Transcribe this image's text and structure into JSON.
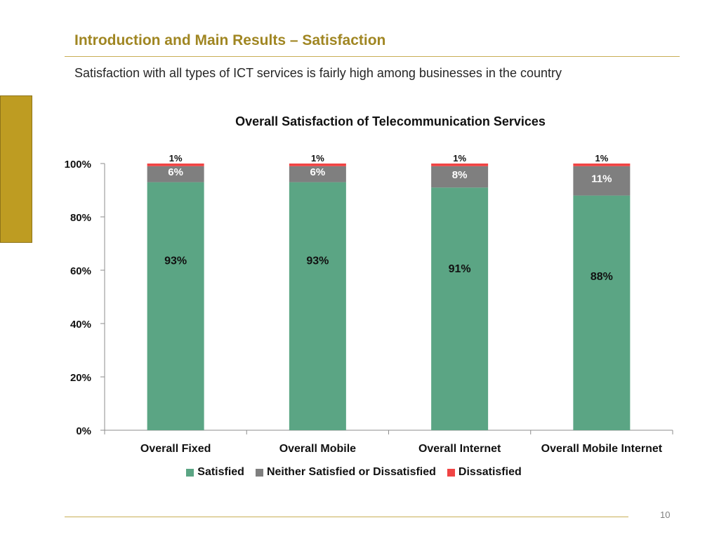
{
  "slide": {
    "title": "Introduction and Main Results – Satisfaction",
    "subtitle": "Satisfaction with all types of ICT services is fairly high among businesses in the country",
    "page_number": "10"
  },
  "colors": {
    "accent": "#BE9C22",
    "title": "#A08622",
    "satisfied": "#5BA584",
    "neutral": "#7F7F7F",
    "dissatisfied": "#F04444"
  },
  "chart_data": {
    "type": "bar",
    "stacked": true,
    "title": "Overall Satisfaction of Telecommunication Services",
    "xlabel": "",
    "ylabel": "",
    "ylim": [
      0,
      100
    ],
    "yticks": [
      "0%",
      "20%",
      "40%",
      "60%",
      "80%",
      "100%"
    ],
    "categories": [
      "Overall Fixed",
      "Overall Mobile",
      "Overall Internet",
      "Overall Mobile Internet"
    ],
    "series": [
      {
        "name": "Satisfied",
        "color": "#5BA584",
        "values": [
          93,
          93,
          91,
          88
        ],
        "labels": [
          "93%",
          "93%",
          "91%",
          "88%"
        ]
      },
      {
        "name": "Neither Satisfied or Dissatisfied",
        "color": "#7F7F7F",
        "values": [
          6,
          6,
          8,
          11
        ],
        "labels": [
          "6%",
          "6%",
          "8%",
          "11%"
        ]
      },
      {
        "name": "Dissatisfied",
        "color": "#F04444",
        "values": [
          1,
          1,
          1,
          1
        ],
        "labels": [
          "1%",
          "1%",
          "1%",
          "1%"
        ]
      }
    ],
    "legend_position": "bottom"
  }
}
